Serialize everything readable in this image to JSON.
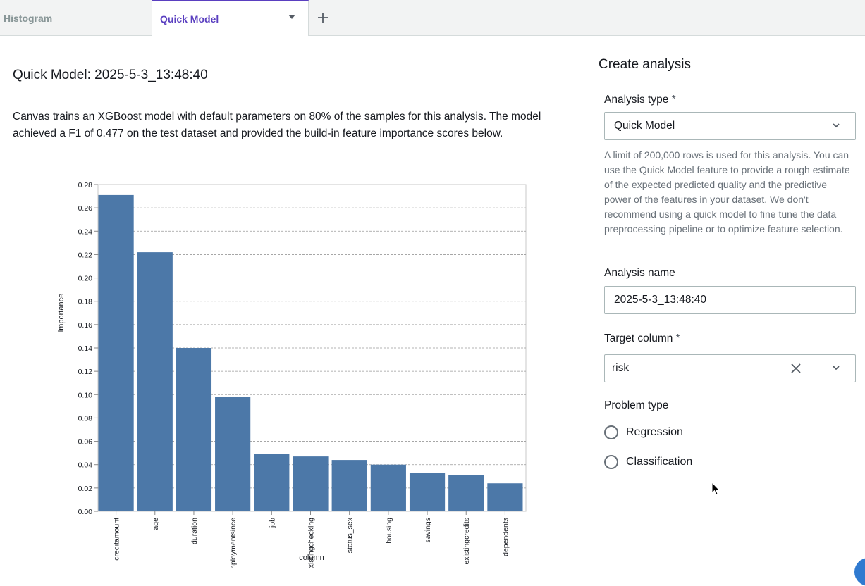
{
  "tabs": [
    {
      "label": "Histogram",
      "active": false
    },
    {
      "label": "Quick Model",
      "active": true
    }
  ],
  "main": {
    "title": "Quick Model: 2025-5-3_13:48:40",
    "description": "Canvas trains an XGBoost model with default parameters on 80% of the samples for this analysis. The model achieved a F1 of 0.477 on the test dataset and provided the build-in feature importance scores below."
  },
  "chart_data": {
    "type": "bar",
    "categories": [
      "creditamount",
      "age",
      "duration",
      "employmentsince",
      "job",
      "existingchecking",
      "status_sex",
      "housing",
      "savings",
      "existingcredits",
      "dependents"
    ],
    "values": [
      0.271,
      0.222,
      0.14,
      0.098,
      0.049,
      0.047,
      0.044,
      0.04,
      0.033,
      0.031,
      0.024
    ],
    "xlabel": "column",
    "ylabel": "importance",
    "ylim": [
      0,
      0.28
    ],
    "yticks": [
      "0.00",
      "0.02",
      "0.04",
      "0.06",
      "0.08",
      "0.10",
      "0.12",
      "0.14",
      "0.16",
      "0.18",
      "0.20",
      "0.22",
      "0.24",
      "0.26",
      "0.28"
    ],
    "grid": true,
    "bar_color": "#4c78a8"
  },
  "panel": {
    "title": "Create analysis",
    "analysis_type": {
      "label": "Analysis type",
      "required_mark": "*",
      "value": "Quick Model"
    },
    "help_text": "A limit of 200,000 rows is used for this analysis. You can use the Quick Model feature to provide a rough estimate of the expected predicted quality and the predictive power of the features in your dataset. We don't recommend using a quick model to fine tune the data preprocessing pipeline or to optimize feature selection.",
    "analysis_name": {
      "label": "Analysis name",
      "value": "2025-5-3_13:48:40"
    },
    "target_column": {
      "label": "Target column",
      "required_mark": "*",
      "value": "risk"
    },
    "problem_type": {
      "label": "Problem type",
      "options": [
        "Regression",
        "Classification"
      ]
    }
  },
  "colors": {
    "accent": "#5a3fc0",
    "bar": "#4c78a8"
  }
}
